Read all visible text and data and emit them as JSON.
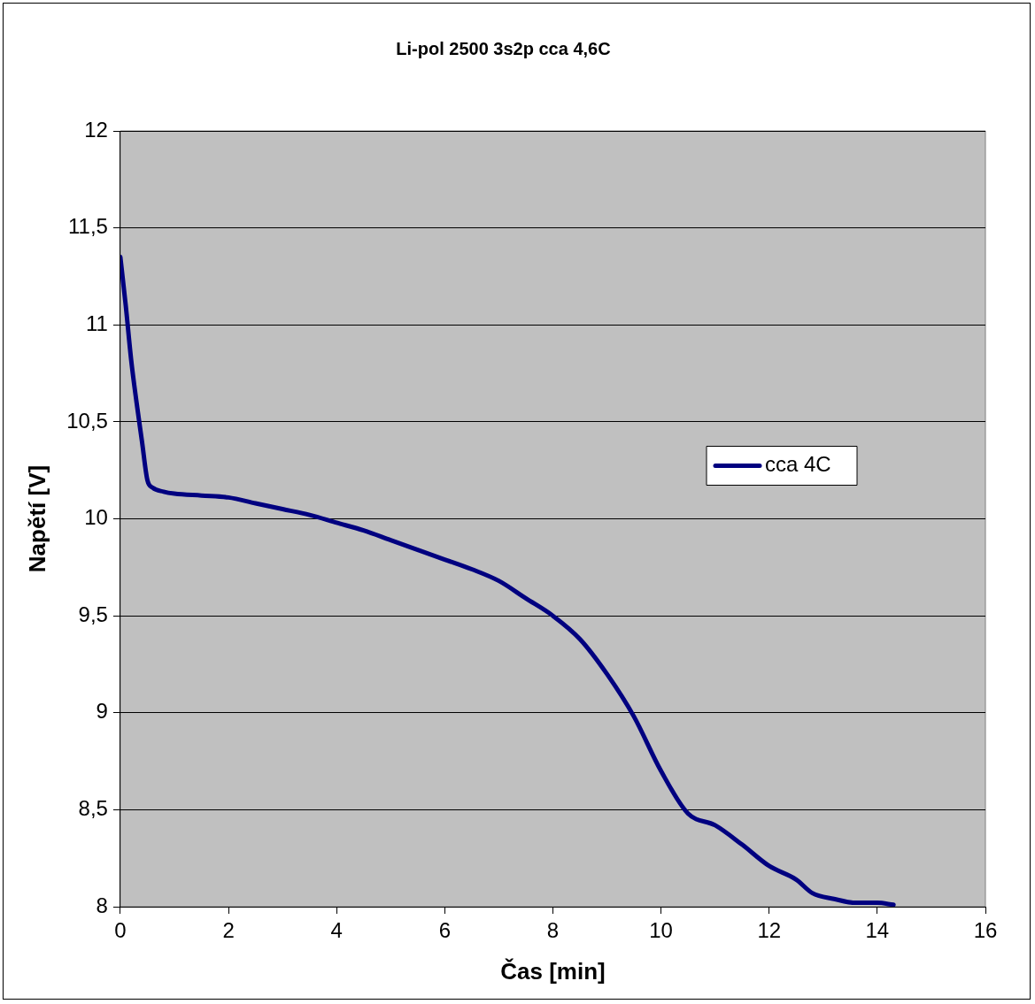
{
  "chart_data": {
    "type": "line",
    "title": "Li-pol 2500 3s2p cca 4,6C",
    "xlabel": "Čas [min]",
    "ylabel": "Napětí [V]",
    "xlim": [
      0,
      16
    ],
    "xticks": [
      0,
      2,
      4,
      6,
      8,
      10,
      12,
      14,
      16
    ],
    "ylim": [
      8,
      12
    ],
    "yticks": [
      8,
      {
        "value": 8.5,
        "label": "8,5"
      },
      9,
      {
        "value": 9.5,
        "label": "9,5"
      },
      10,
      {
        "value": 10.5,
        "label": "10,5"
      },
      11,
      {
        "value": 11.5,
        "label": "11,5"
      },
      12
    ],
    "grid": "y",
    "legend": "right",
    "marker": "none",
    "line_style": "solid",
    "series": [
      {
        "name": "cca 4C",
        "color": "#000080",
        "x": [
          0,
          0.1,
          0.2,
          0.3,
          0.4,
          0.5,
          0.6,
          0.8,
          1,
          1.5,
          2,
          2.5,
          3,
          3.5,
          4,
          4.5,
          5,
          5.5,
          6,
          6.5,
          7,
          7.5,
          8,
          8.5,
          9,
          9.5,
          10,
          10.5,
          11,
          11.5,
          12,
          12.5,
          12.8,
          13.2,
          13.6,
          14,
          14.3
        ],
        "values": [
          11.35,
          11.1,
          10.82,
          10.6,
          10.4,
          10.2,
          10.16,
          10.14,
          10.13,
          10.12,
          10.11,
          10.08,
          10.05,
          10.02,
          9.98,
          9.94,
          9.89,
          9.84,
          9.79,
          9.74,
          9.68,
          9.59,
          9.5,
          9.38,
          9.2,
          8.98,
          8.7,
          8.48,
          8.42,
          8.32,
          8.21,
          8.14,
          8.07,
          8.04,
          8.02,
          8.02,
          8.01
        ]
      }
    ]
  }
}
